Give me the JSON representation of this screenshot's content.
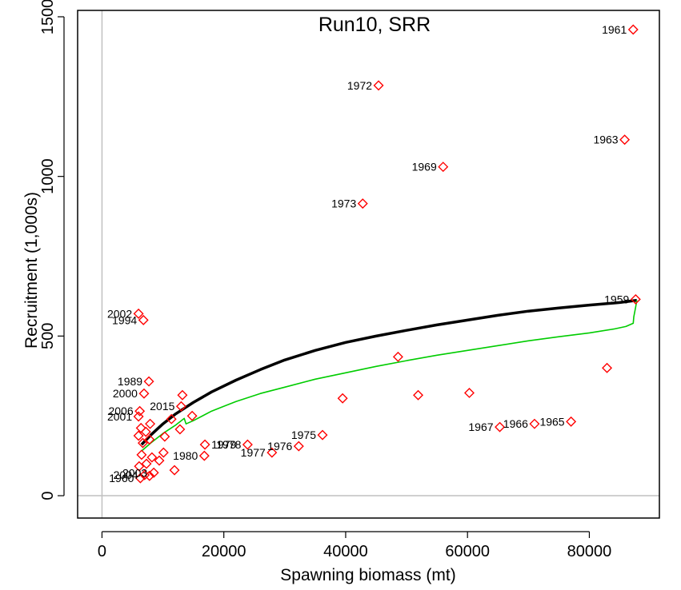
{
  "chart_data": {
    "type": "scatter",
    "title": "Run10, SRR",
    "xlabel": "Spawning biomass (mt)",
    "ylabel": "Recruitment (1,000s)",
    "xlim": [
      -4000,
      91500
    ],
    "ylim": [
      -70,
      1520
    ],
    "x_ticks": [
      0,
      20000,
      40000,
      60000,
      80000
    ],
    "y_ticks": [
      0,
      500,
      1000,
      1500
    ],
    "grid": false,
    "reference_lines": {
      "x": 0,
      "y": 0,
      "color": "#c0c0c0"
    },
    "point_color": "#ff0000",
    "observations": [
      {
        "label": "1961",
        "x": 87200,
        "y": 1460,
        "label_side": "left"
      },
      {
        "label": "1972",
        "x": 45400,
        "y": 1285,
        "label_side": "left"
      },
      {
        "label": "1963",
        "x": 85800,
        "y": 1115,
        "label_side": "left"
      },
      {
        "label": "1969",
        "x": 56000,
        "y": 1030,
        "label_side": "left"
      },
      {
        "label": "1973",
        "x": 42800,
        "y": 915,
        "label_side": "left"
      },
      {
        "label": "1959",
        "x": 87600,
        "y": 615,
        "label_side": "left"
      },
      {
        "label": "2002",
        "x": 6000,
        "y": 570,
        "label_side": "left"
      },
      {
        "label": "1994",
        "x": 6800,
        "y": 550,
        "label_side": "left"
      },
      {
        "label": "",
        "x": 48600,
        "y": 435
      },
      {
        "label": "",
        "x": 82900,
        "y": 400
      },
      {
        "label": "1989",
        "x": 7700,
        "y": 358,
        "label_side": "left"
      },
      {
        "label": "2000",
        "x": 6900,
        "y": 320,
        "label_side": "left"
      },
      {
        "label": "",
        "x": 60300,
        "y": 322
      },
      {
        "label": "",
        "x": 51900,
        "y": 315
      },
      {
        "label": "",
        "x": 13200,
        "y": 315
      },
      {
        "label": "",
        "x": 39500,
        "y": 305
      },
      {
        "label": "2015",
        "x": 13000,
        "y": 280,
        "label_side": "left"
      },
      {
        "label": "2006",
        "x": 6200,
        "y": 265,
        "label_side": "left"
      },
      {
        "label": "2001",
        "x": 6000,
        "y": 248,
        "label_side": "left"
      },
      {
        "label": "",
        "x": 14800,
        "y": 250
      },
      {
        "label": "",
        "x": 11400,
        "y": 240
      },
      {
        "label": "",
        "x": 7900,
        "y": 225
      },
      {
        "label": "",
        "x": 6400,
        "y": 212
      },
      {
        "label": "",
        "x": 12800,
        "y": 208
      },
      {
        "label": "",
        "x": 7200,
        "y": 200
      },
      {
        "label": "",
        "x": 6000,
        "y": 188
      },
      {
        "label": "",
        "x": 10300,
        "y": 185
      },
      {
        "label": "",
        "x": 7800,
        "y": 176
      },
      {
        "label": "",
        "x": 6700,
        "y": 165
      },
      {
        "label": "1965",
        "x": 77000,
        "y": 232,
        "label_side": "left"
      },
      {
        "label": "1966",
        "x": 71000,
        "y": 225,
        "label_side": "left"
      },
      {
        "label": "1967",
        "x": 65300,
        "y": 215,
        "label_side": "left"
      },
      {
        "label": "1975",
        "x": 36200,
        "y": 190,
        "label_side": "left"
      },
      {
        "label": "1976",
        "x": 32300,
        "y": 155,
        "label_side": "left"
      },
      {
        "label": "1977",
        "x": 27900,
        "y": 135,
        "label_side": "left"
      },
      {
        "label": "1978",
        "x": 23900,
        "y": 160,
        "label_side": "left"
      },
      {
        "label": "1979",
        "x": 16900,
        "y": 160,
        "label_side": "right"
      },
      {
        "label": "1980",
        "x": 16800,
        "y": 125,
        "label_side": "left"
      },
      {
        "label": "",
        "x": 10100,
        "y": 135
      },
      {
        "label": "",
        "x": 8200,
        "y": 120
      },
      {
        "label": "",
        "x": 6500,
        "y": 128
      },
      {
        "label": "",
        "x": 9400,
        "y": 110
      },
      {
        "label": "",
        "x": 7300,
        "y": 100
      },
      {
        "label": "",
        "x": 6100,
        "y": 92
      },
      {
        "label": "",
        "x": 11900,
        "y": 80
      },
      {
        "label": "2003",
        "x": 8500,
        "y": 72,
        "label_side": "left"
      },
      {
        "label": "2004",
        "x": 7000,
        "y": 65,
        "label_side": "left"
      },
      {
        "label": "",
        "x": 7800,
        "y": 62
      },
      {
        "label": "1960",
        "x": 6300,
        "y": 55,
        "label_side": "left"
      }
    ],
    "curves": [
      {
        "name": "",
        "color": "#000000",
        "x": [
          6500,
          8000,
          10000,
          12000,
          15000,
          18000,
          22000,
          26000,
          30000,
          35000,
          40000,
          45000,
          50000,
          55000,
          60000,
          65000,
          70000,
          75000,
          80000,
          85000,
          87800
        ],
        "y": [
          160,
          190,
          225,
          255,
          292,
          325,
          362,
          395,
          425,
          455,
          480,
          500,
          518,
          535,
          550,
          565,
          578,
          588,
          597,
          605,
          612
        ]
      },
      {
        "name": "",
        "color": "#00cc00",
        "x": [
          6500,
          8000,
          10000,
          12000,
          13500,
          13800,
          15000,
          18000,
          22000,
          26000,
          30000,
          35000,
          40000,
          45000,
          50000,
          55000,
          60000,
          65000,
          70000,
          75000,
          80000,
          84000,
          86000,
          87200,
          87300,
          87600,
          87800
        ],
        "y": [
          140,
          165,
          195,
          220,
          242,
          225,
          235,
          265,
          295,
          320,
          340,
          365,
          385,
          405,
          423,
          440,
          455,
          470,
          485,
          498,
          510,
          522,
          530,
          540,
          560,
          590,
          612
        ]
      }
    ]
  }
}
